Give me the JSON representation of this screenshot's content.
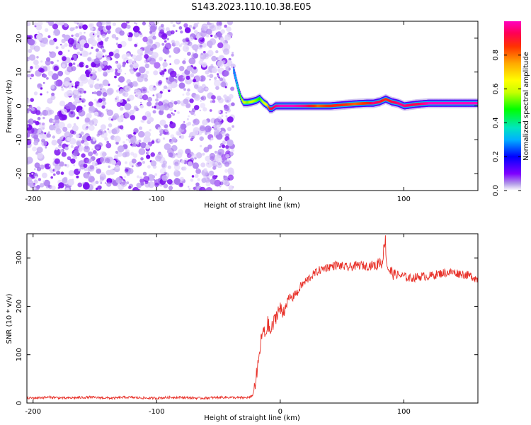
{
  "figure": {
    "title": "S143.2023.110.10.38.E05"
  },
  "chart_data": [
    {
      "type": "heatmap",
      "xlabel": "Height of straight line (km)",
      "ylabel": "Frequency (Hz)",
      "xlim": [
        -205,
        160
      ],
      "ylim": [
        -25,
        25
      ],
      "x_ticks": [
        -200,
        -100,
        0,
        100
      ],
      "x_tick_labels": [
        "-200",
        "-100",
        "0",
        "100"
      ],
      "y_ticks": [
        -20,
        -10,
        0,
        10,
        20
      ],
      "y_tick_labels": [
        "-20",
        "-10",
        "0",
        "10",
        "20"
      ],
      "grid": false,
      "colorbar": {
        "label": "Normalized spectral amplitude",
        "range": [
          0,
          1
        ],
        "ticks": [
          0,
          0.2,
          0.4,
          0.6,
          0.8
        ],
        "tick_labels": [
          "0.0",
          "0.2",
          "0.4",
          "0.6",
          "0.8"
        ],
        "colors": [
          "#ffffff",
          "#b39ce8",
          "#7f00ff",
          "#0000ff",
          "#00b0ff",
          "#00e5c0",
          "#00ff00",
          "#c8ff00",
          "#ffff00",
          "#ffaa00",
          "#ff3300",
          "#ff0055",
          "#ff00c0"
        ]
      },
      "noise_region": {
        "x_range": [
          -205,
          -38
        ],
        "y_range": [
          -25,
          25
        ],
        "amplitude": "low"
      },
      "signal_ridge": {
        "x": [
          -38,
          -36,
          -34,
          -32,
          -30,
          -27,
          -24,
          -20,
          -17,
          -14,
          -11,
          -9,
          -7,
          -4,
          0,
          10,
          20,
          30,
          40,
          50,
          60,
          70,
          75,
          80,
          85,
          90,
          95,
          100,
          110,
          120,
          130,
          140,
          150,
          160
        ],
        "frequency": [
          10.5,
          7.5,
          4.5,
          2.2,
          1.0,
          1.0,
          1.2,
          1.6,
          2.2,
          1.0,
          0.2,
          -0.8,
          -0.8,
          0.0,
          0.0,
          0.0,
          0.0,
          0.0,
          0.0,
          0.3,
          0.6,
          0.8,
          0.8,
          1.2,
          2.0,
          1.2,
          0.8,
          0.0,
          0.5,
          0.8,
          0.8,
          0.8,
          0.8,
          0.8
        ],
        "amplitude": [
          0.3,
          0.35,
          0.45,
          0.55,
          0.6,
          0.55,
          0.6,
          0.55,
          0.5,
          0.6,
          0.7,
          0.85,
          0.9,
          0.95,
          1.0,
          1.0,
          0.95,
          0.8,
          0.85,
          0.85,
          0.8,
          0.85,
          0.95,
          0.9,
          0.85,
          0.9,
          0.95,
          0.95,
          0.9,
          1.0,
          1.0,
          1.0,
          1.0,
          1.0
        ]
      }
    },
    {
      "type": "line",
      "xlabel": "Height of straight line (km)",
      "ylabel": "SNR (10 * v/v)",
      "xlim": [
        -205,
        160
      ],
      "ylim": [
        0,
        350
      ],
      "x_ticks": [
        -200,
        -100,
        0,
        100
      ],
      "x_tick_labels": [
        "-200",
        "-100",
        "0",
        "100"
      ],
      "y_ticks": [
        0,
        100,
        200,
        300
      ],
      "y_tick_labels": [
        "0",
        "100",
        "200",
        "300"
      ],
      "grid": false,
      "color": "#e8322a",
      "series": [
        {
          "x": [
            -205,
            -195,
            -185,
            -175,
            -165,
            -155,
            -145,
            -135,
            -125,
            -115,
            -105,
            -95,
            -85,
            -75,
            -65,
            -55,
            -45,
            -35,
            -28,
            -24,
            -22,
            -20,
            -18,
            -16,
            -14,
            -12,
            -10,
            -8,
            -6,
            -4,
            -2,
            0,
            2,
            4,
            6,
            8,
            10,
            12,
            14,
            16,
            18,
            20,
            25,
            30,
            35,
            40,
            45,
            50,
            55,
            60,
            65,
            70,
            75,
            78,
            80,
            82,
            84,
            85,
            86,
            88,
            90,
            95,
            100,
            105,
            110,
            115,
            120,
            125,
            130,
            135,
            140,
            145,
            150,
            155,
            160
          ],
          "y": [
            10,
            11,
            12,
            10,
            11,
            12,
            11,
            10,
            12,
            11,
            10,
            11,
            12,
            11,
            10,
            11,
            12,
            11,
            11,
            12,
            18,
            45,
            75,
            120,
            150,
            140,
            165,
            145,
            160,
            175,
            190,
            195,
            185,
            200,
            210,
            220,
            215,
            230,
            225,
            240,
            245,
            250,
            262,
            272,
            278,
            282,
            285,
            283,
            280,
            283,
            285,
            283,
            286,
            282,
            295,
            288,
            318,
            345,
            290,
            275,
            270,
            265,
            262,
            258,
            260,
            262,
            262,
            265,
            268,
            270,
            270,
            268,
            265,
            262,
            255
          ]
        }
      ]
    }
  ]
}
